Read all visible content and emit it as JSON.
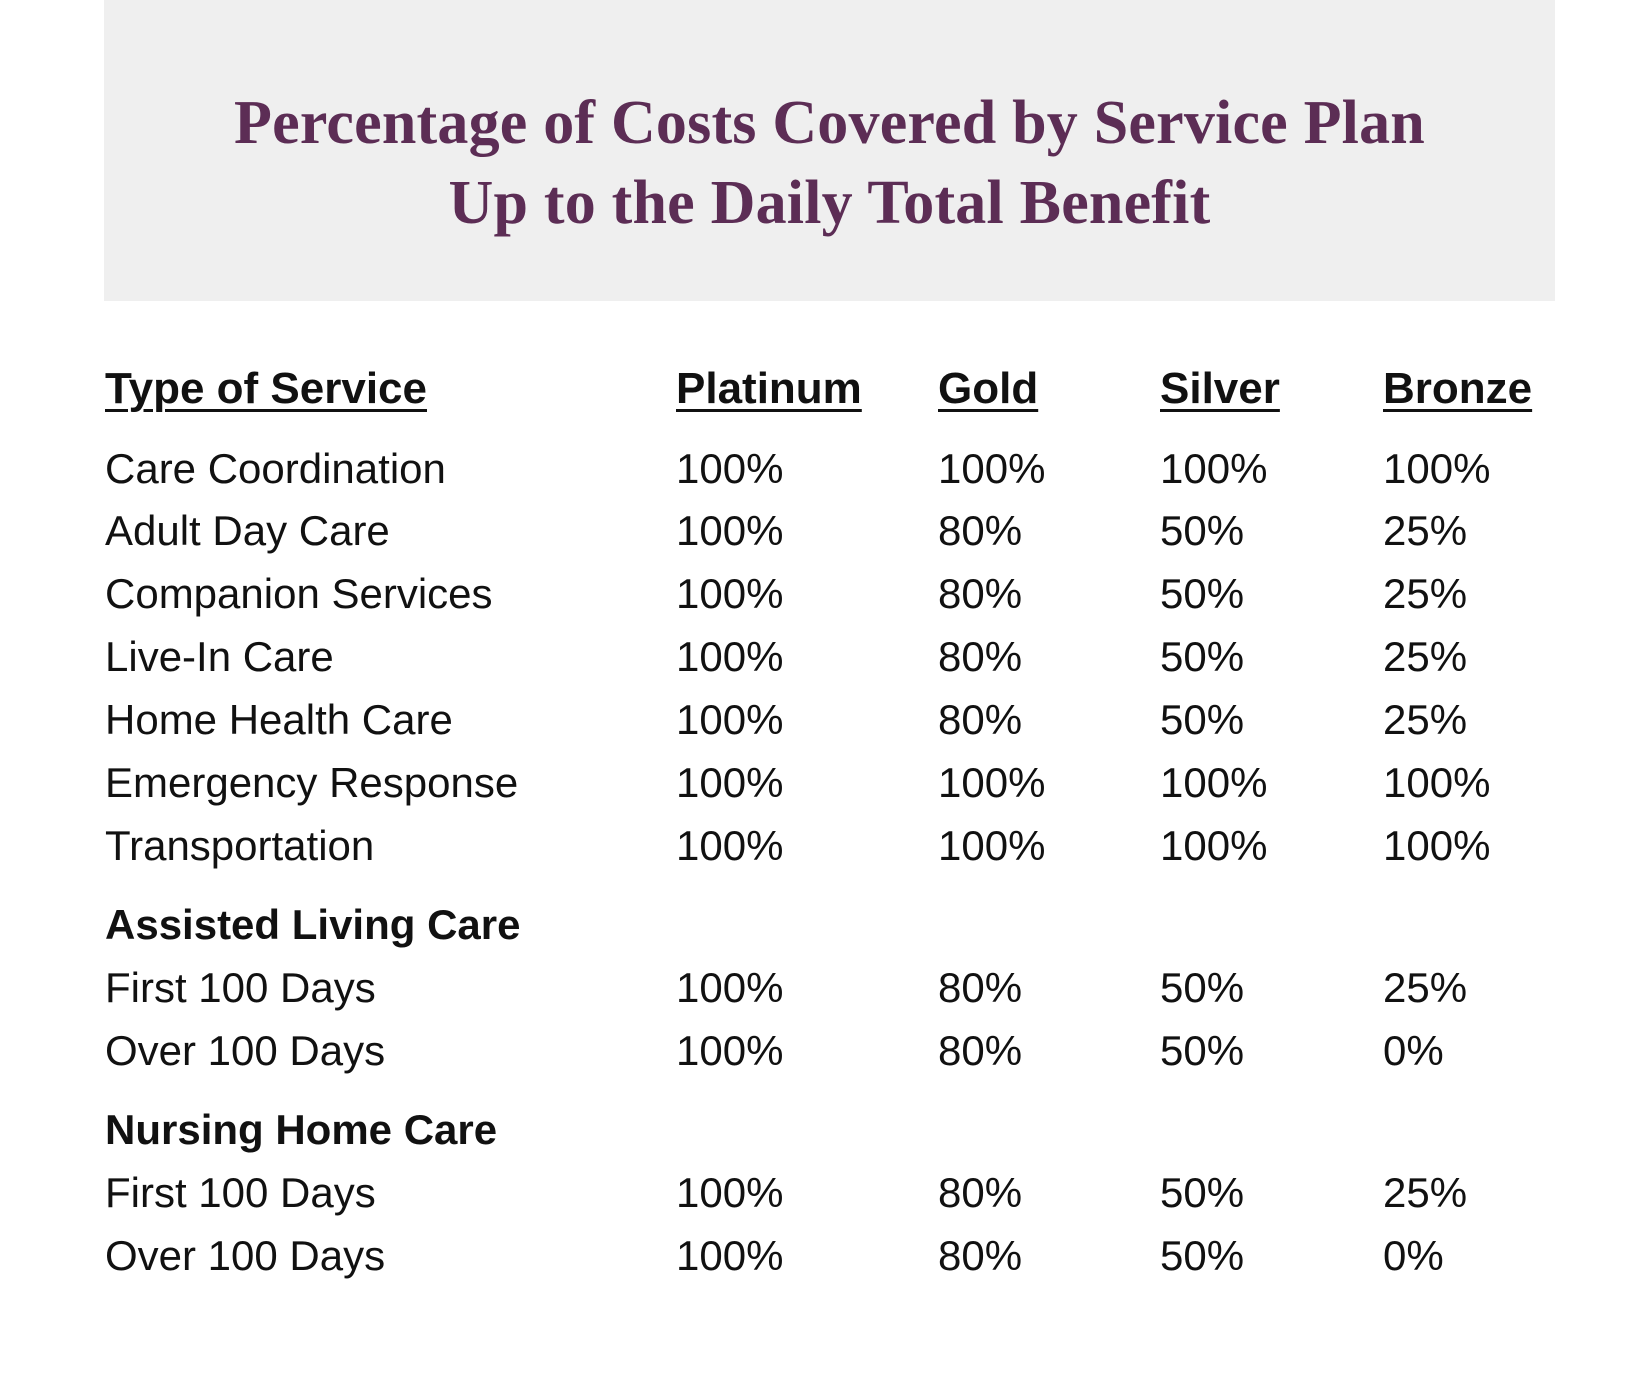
{
  "title": {
    "line1": "Percentage of Costs Covered by Service Plan",
    "line2": "Up to the Daily Total Benefit"
  },
  "table": {
    "headers": [
      "Type of Service",
      "Platinum",
      "Gold",
      "Silver",
      "Bronze"
    ],
    "rows": [
      [
        "Care Coordination",
        "100%",
        "100%",
        "100%",
        "100%"
      ],
      [
        "Adult Day Care",
        "100%",
        "80%",
        "50%",
        "25%"
      ],
      [
        "Companion Services",
        "100%",
        "80%",
        "50%",
        "25%"
      ],
      [
        "Live-In Care",
        "100%",
        "80%",
        "50%",
        "25%"
      ],
      [
        "Home Health Care",
        "100%",
        "80%",
        "50%",
        "25%"
      ],
      [
        "Emergency Response",
        "100%",
        "100%",
        "100%",
        "100%"
      ],
      [
        "Transportation",
        "100%",
        "100%",
        "100%",
        "100%"
      ]
    ],
    "sections": [
      {
        "title": "Assisted Living Care",
        "rows": [
          [
            "First 100 Days",
            "100%",
            "80%",
            "50%",
            "25%"
          ],
          [
            "Over 100 Days",
            "100%",
            "80%",
            "50%",
            "0%"
          ]
        ]
      },
      {
        "title": "Nursing Home Care",
        "rows": [
          [
            "First 100 Days",
            "100%",
            "80%",
            "50%",
            "25%"
          ],
          [
            "Over 100 Days",
            "100%",
            "80%",
            "50%",
            "0%"
          ]
        ]
      }
    ]
  },
  "colors": {
    "title": "#5c2d55",
    "header_band": "#efefef",
    "text": "#111111"
  }
}
